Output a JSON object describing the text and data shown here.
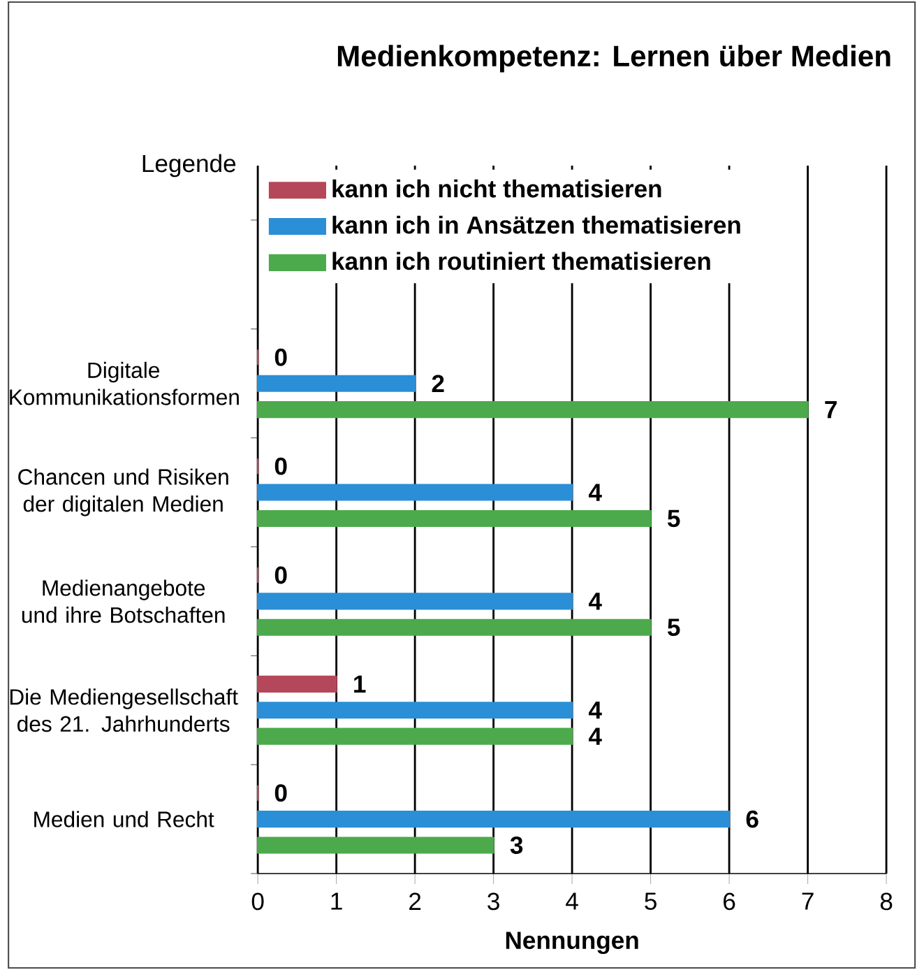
{
  "chart_data": {
    "type": "bar",
    "orientation": "horizontal",
    "title": "Medienkompetenz: Lernen über Medien",
    "xlabel": "Nennungen",
    "legend_title": "Legende",
    "categories": [
      "Digitale Kommunikationsformen",
      "Chancen und Risiken der digitalen Medien",
      "Medienangebote und ihre Botschaften",
      "Die Mediengesellschaft des 21. Jahrhunderts",
      "Medien und Recht"
    ],
    "series": [
      {
        "name": "kann ich nicht thematisieren",
        "color": "#b5475a",
        "values": [
          0,
          0,
          0,
          1,
          0
        ]
      },
      {
        "name": "kann ich in Ansätzen thematisieren",
        "color": "#2a8fd6",
        "values": [
          2,
          4,
          4,
          4,
          6
        ]
      },
      {
        "name": "kann ich routiniert thematisieren",
        "color": "#4caa4c",
        "values": [
          7,
          5,
          5,
          4,
          3
        ]
      }
    ],
    "xlim": [
      0,
      8
    ],
    "xticks": [
      0,
      1,
      2,
      3,
      4,
      5,
      6,
      7,
      8
    ],
    "grid": "x",
    "legend": "top left",
    "data_labels": true
  }
}
